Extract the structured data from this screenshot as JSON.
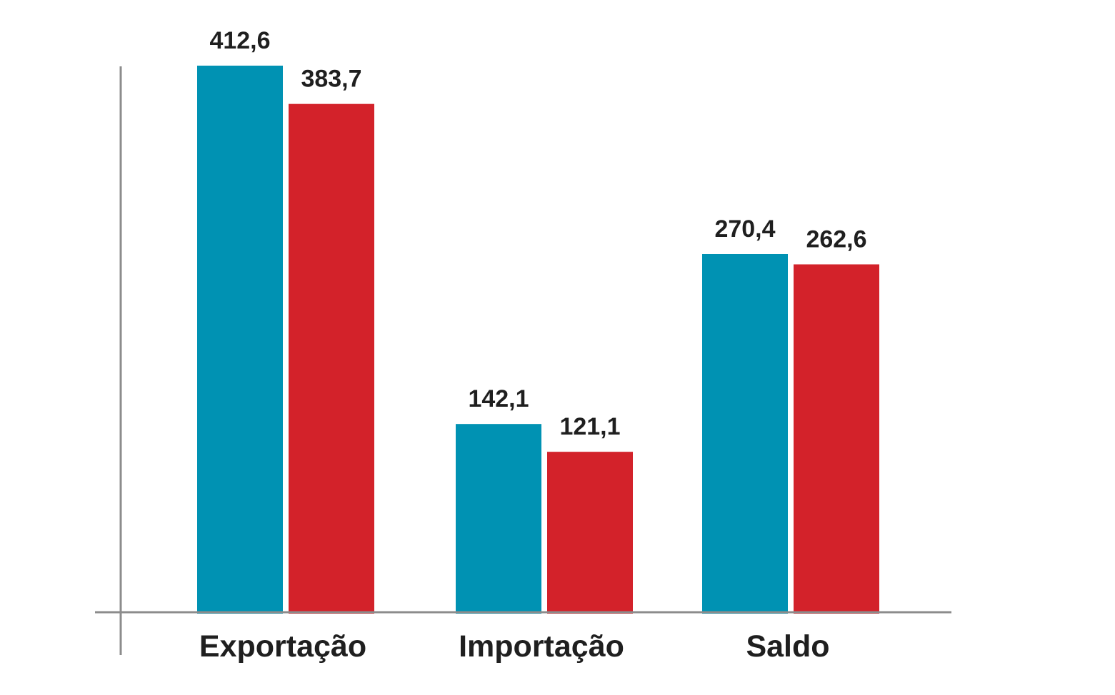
{
  "chart_data": {
    "type": "bar",
    "categories": [
      "Exportação",
      "Importação",
      "Saldo"
    ],
    "series": [
      {
        "values": [
          412.6,
          142.1,
          270.4
        ],
        "labels": [
          "412,6",
          "142,1",
          "270,4"
        ]
      },
      {
        "values": [
          383.7,
          121.1,
          262.6
        ],
        "labels": [
          "383,7",
          "121,1",
          "262,6"
        ]
      }
    ],
    "colors": [
      "#0092b3",
      "#d3222a"
    ],
    "ylim": [
      0,
      412.6
    ],
    "grid": false,
    "legend": "none"
  }
}
